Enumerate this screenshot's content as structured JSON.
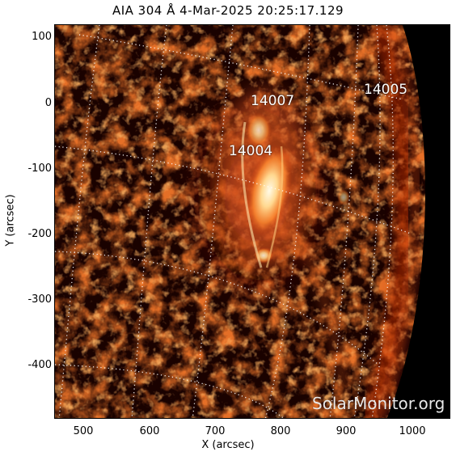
{
  "title": "AIA 304 Å  4-Mar-2025 20:25:17.129",
  "axes": {
    "xlabel": "X (arcsec)",
    "ylabel": "Y (arcsec)",
    "xticks": [
      "500",
      "600",
      "700",
      "800",
      "900",
      "1000"
    ],
    "yticks": [
      "100",
      "0",
      "-100",
      "-200",
      "-300",
      "-400"
    ]
  },
  "regions": [
    {
      "label": "14007"
    },
    {
      "label": "14004"
    },
    {
      "label": "14005"
    }
  ],
  "watermark": "SolarMonitor.org",
  "colors": {
    "background": "#000000",
    "plasma_dark": "#5a0a00",
    "plasma_mid": "#c03008",
    "plasma_bright": "#ff9a40",
    "plasma_core": "#fff4d6",
    "grid": "#ffffff"
  }
}
